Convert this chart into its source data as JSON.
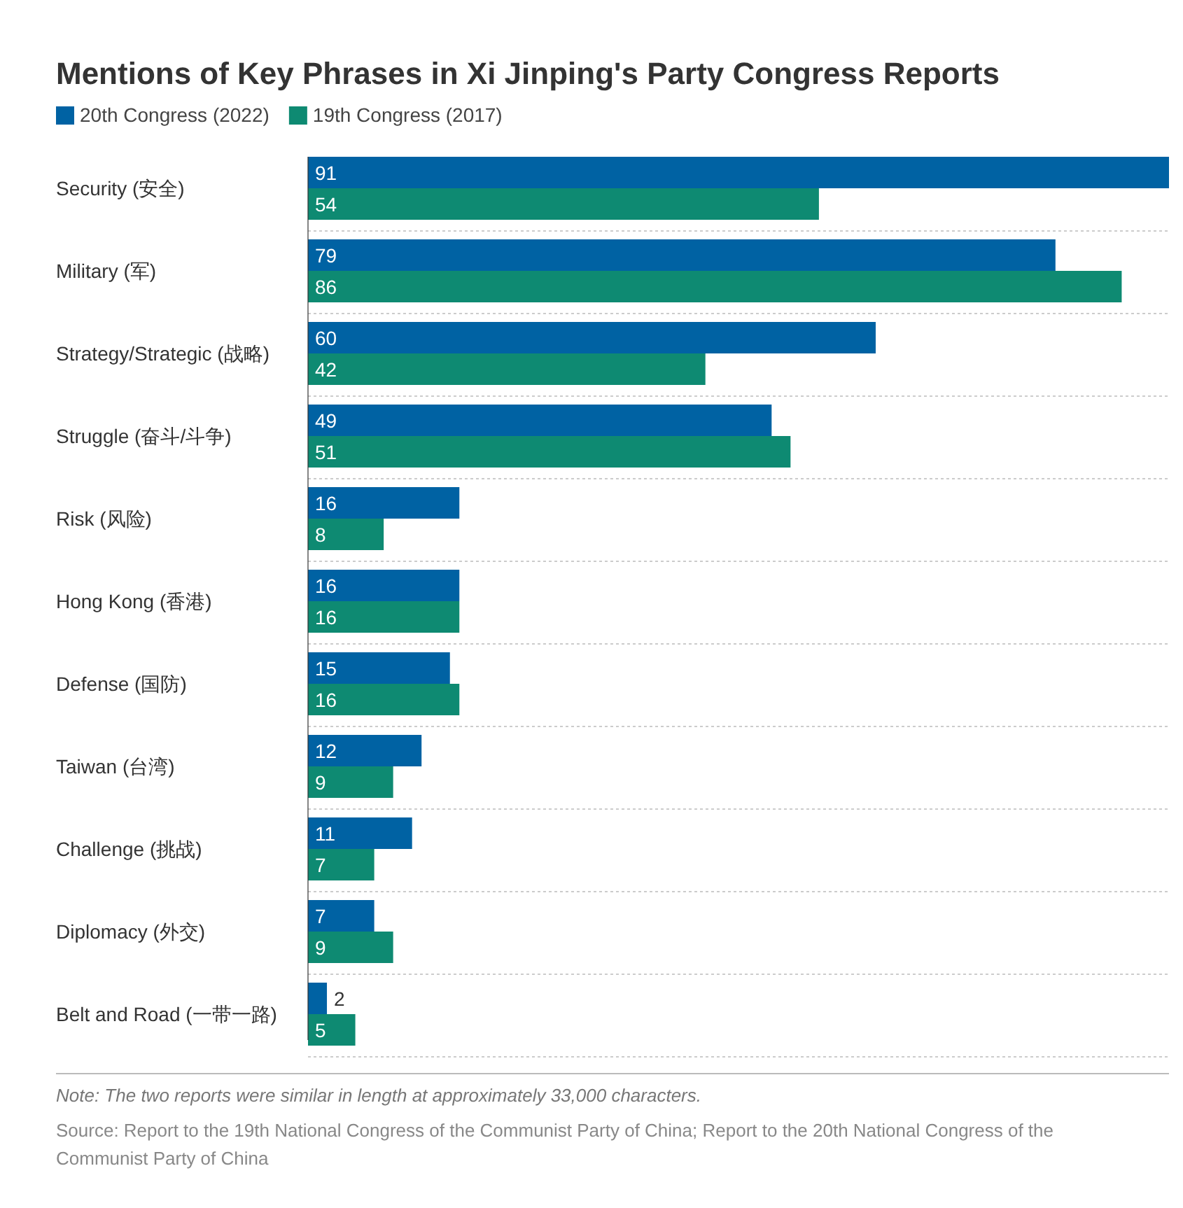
{
  "chart_data": {
    "type": "bar",
    "orientation": "horizontal",
    "title": "Mentions of Key Phrases in Xi Jinping's Party Congress Reports",
    "categories": [
      "Security (安全)",
      "Military (军)",
      "Strategy/Strategic (战略)",
      "Struggle (奋斗/斗争)",
      "Risk (风险)",
      "Hong Kong (香港)",
      "Defense (国防)",
      "Taiwan (台湾)",
      "Challenge (挑战)",
      "Diplomacy (外交)",
      "Belt and Road (一带一路)"
    ],
    "series": [
      {
        "name": "20th Congress (2022)",
        "color": "#0062a3",
        "values": [
          91,
          79,
          60,
          49,
          16,
          16,
          15,
          12,
          11,
          7,
          2
        ]
      },
      {
        "name": "19th Congress (2017)",
        "color": "#0e8a72",
        "values": [
          54,
          86,
          42,
          51,
          8,
          16,
          16,
          9,
          7,
          9,
          5
        ]
      }
    ],
    "data_labels": true,
    "grid": "y",
    "legend": "top left",
    "annotations": [
      "Note: The two reports were similar in length at approximately 33,000 characters.",
      "Source: Report to the 19th National Congress of the Communist Party of China; Report to the 20th National Congress of the Communist Party of China"
    ]
  }
}
